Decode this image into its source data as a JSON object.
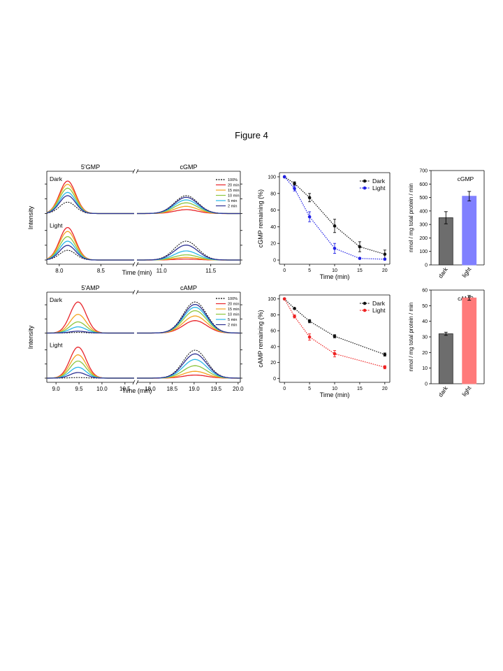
{
  "figure_title": "Figure 4",
  "colors": {
    "t20": "#e8242a",
    "t15": "#f5a31f",
    "t10": "#8dc63f",
    "t5": "#29b7e8",
    "t2": "#2e3192",
    "t100": "#000000",
    "dark_series": "#111111",
    "light_blue": "#1f1fe6",
    "light_red": "#ee2222",
    "bar_dark": "#6d6d6d",
    "bar_light_blue": "#8080ff",
    "bar_light_red": "#ff7a7a"
  },
  "legend_times": [
    "100%",
    "20 min",
    "15 min",
    "10 min",
    "5 min",
    "2 min"
  ],
  "chart_data": [
    {
      "id": "gmp-chromatogram",
      "type": "line",
      "ylabel": "Intensity",
      "xlabel": "Time (min)",
      "left_title": "5'GMP",
      "right_title": "cGMP",
      "panel_labels": [
        "Dark",
        "Light"
      ],
      "left_xlim": [
        7.85,
        8.9
      ],
      "right_xlim": [
        10.75,
        11.8
      ],
      "left_ticks": [
        "8.0",
        "8.5"
      ],
      "right_ticks": [
        "11.0",
        "11.5"
      ],
      "left_tick_values": [
        8.0,
        8.5
      ],
      "right_tick_values": [
        11.0,
        11.5
      ],
      "left_peak": 8.1,
      "right_peak": 11.25,
      "series": [
        "100%",
        "20 min",
        "15 min",
        "10 min",
        "5 min",
        "2 min"
      ],
      "dark": {
        "left_heights": [
          0.35,
          1.0,
          0.9,
          0.78,
          0.65,
          0.55
        ],
        "right_heights": [
          0.55,
          0.12,
          0.22,
          0.33,
          0.42,
          0.5
        ]
      },
      "light": {
        "left_heights": [
          0.3,
          1.0,
          0.88,
          0.72,
          0.58,
          0.45
        ],
        "right_heights": [
          0.58,
          0.03,
          0.08,
          0.16,
          0.28,
          0.46
        ]
      }
    },
    {
      "id": "amp-chromatogram",
      "type": "line",
      "ylabel": "Intensity",
      "xlabel": "Time (min)",
      "left_title": "5'AMP",
      "right_title": "cAMP",
      "panel_labels": [
        "Dark",
        "Light"
      ],
      "left_xlim": [
        8.8,
        10.7
      ],
      "right_xlim": [
        17.7,
        20.05
      ],
      "left_ticks": [
        "9.0",
        "9.5",
        "10.0",
        "10.5"
      ],
      "right_ticks": [
        "18.0",
        "18.5",
        "19.0",
        "19.5",
        "20.0"
      ],
      "left_tick_values": [
        9.0,
        9.5,
        10.0,
        10.5
      ],
      "right_tick_values": [
        18.0,
        18.5,
        19.0,
        19.5,
        20.0
      ],
      "left_peak": 9.48,
      "right_peak": 19.02,
      "series": [
        "100%",
        "20 min",
        "15 min",
        "10 min",
        "5 min",
        "2 min"
      ],
      "dark": {
        "left_heights": [
          0.02,
          1.0,
          0.6,
          0.36,
          0.2,
          0.06
        ],
        "right_heights": [
          1.0,
          0.4,
          0.55,
          0.72,
          0.83,
          0.92
        ]
      },
      "light": {
        "left_heights": [
          0.02,
          1.0,
          0.75,
          0.55,
          0.35,
          0.18
        ],
        "right_heights": [
          0.9,
          0.1,
          0.22,
          0.4,
          0.6,
          0.78
        ]
      }
    },
    {
      "id": "cgmp-remaining",
      "type": "scatter",
      "ylabel": "cGMP remaining (%)",
      "xlabel": "Time (min)",
      "xlim": [
        -1,
        21
      ],
      "ylim": [
        -5,
        105
      ],
      "xticks": [
        0,
        5,
        10,
        15,
        20
      ],
      "yticks": [
        0,
        20,
        40,
        60,
        80,
        100
      ],
      "legend_position": "top-right",
      "series": [
        {
          "name": "Dark",
          "x": [
            0,
            2,
            5,
            10,
            15,
            20
          ],
          "y": [
            100,
            92,
            75,
            41,
            16,
            7
          ],
          "err": [
            0,
            2,
            5,
            8,
            6,
            5
          ]
        },
        {
          "name": "Light",
          "x": [
            0,
            2,
            5,
            10,
            15,
            20
          ],
          "y": [
            100,
            86,
            52,
            14,
            2,
            1
          ],
          "err": [
            0,
            3,
            6,
            6,
            1,
            1
          ]
        }
      ]
    },
    {
      "id": "camp-remaining",
      "type": "scatter",
      "ylabel": "cAMP remaining (%)",
      "xlabel": "Time (min)",
      "xlim": [
        -1,
        21
      ],
      "ylim": [
        -5,
        105
      ],
      "xticks": [
        0,
        5,
        10,
        15,
        20
      ],
      "yticks": [
        0,
        20,
        40,
        60,
        80,
        100
      ],
      "legend_position": "top-right",
      "series": [
        {
          "name": "Dark",
          "x": [
            0,
            2,
            5,
            10,
            20
          ],
          "y": [
            100,
            88,
            72,
            53,
            30
          ],
          "err": [
            0,
            1,
            2,
            2,
            2
          ]
        },
        {
          "name": "Light",
          "x": [
            0,
            2,
            5,
            10,
            20
          ],
          "y": [
            100,
            78,
            52,
            31,
            14
          ],
          "err": [
            0,
            2,
            4,
            4,
            2
          ]
        }
      ]
    },
    {
      "id": "cgmp-rate",
      "type": "bar",
      "title": "cGMP",
      "ylabel": "nmol / mg total protein / min",
      "categories": [
        "dark",
        "light"
      ],
      "values": [
        350,
        510
      ],
      "err": [
        45,
        35
      ],
      "ylim": [
        0,
        700
      ],
      "yticks": [
        0,
        100,
        200,
        300,
        400,
        500,
        600,
        700
      ]
    },
    {
      "id": "camp-rate",
      "type": "bar",
      "title": "cAMP",
      "ylabel": "nmol / mg total protein / min",
      "categories": [
        "dark",
        "light"
      ],
      "values": [
        32,
        55
      ],
      "err": [
        1,
        1.5
      ],
      "ylim": [
        0,
        60
      ],
      "yticks": [
        0,
        10,
        20,
        30,
        40,
        50,
        60
      ]
    }
  ]
}
